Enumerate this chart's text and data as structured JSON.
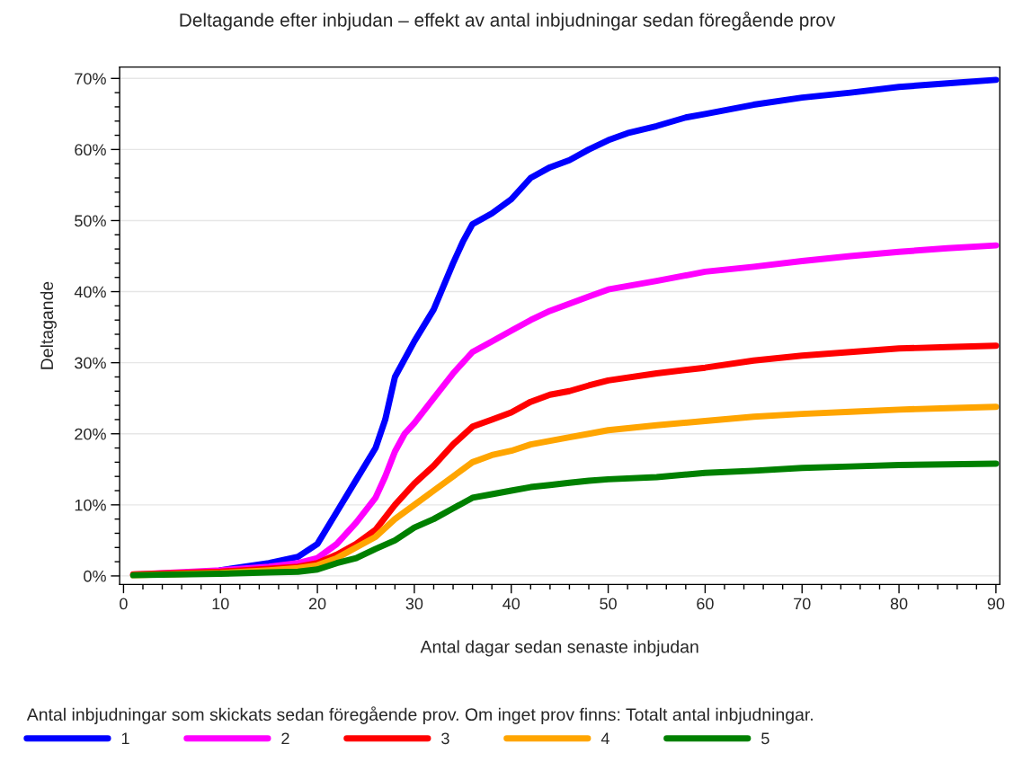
{
  "chart_data": {
    "type": "line",
    "title": "Deltagande efter inbjudan – effekt av antal inbjudningar sedan föregående prov",
    "xlabel": "Antal dagar sedan senaste inbjudan",
    "ylabel": "Deltagande",
    "legend_title": "Antal inbjudningar som skickats sedan föregående prov. Om inget prov finns: Totalt antal inbjudningar.",
    "x": [
      1,
      10,
      15,
      18,
      20,
      22,
      24,
      26,
      28,
      30,
      32,
      34,
      36,
      38,
      40,
      42,
      44,
      46,
      48,
      50,
      55,
      60,
      65,
      70,
      75,
      80,
      85,
      90
    ],
    "series": [
      {
        "name": "1",
        "color": "#0000ff",
        "x": [
          10,
          15,
          18,
          20,
          22,
          24,
          26,
          27,
          28,
          30,
          32,
          34,
          35,
          36,
          38,
          40,
          42,
          44,
          46,
          48,
          50,
          52,
          55,
          58,
          60,
          65,
          70,
          75,
          80,
          85,
          90
        ],
        "values": [
          0.8,
          1.8,
          2.7,
          4.5,
          9,
          13.5,
          18,
          22,
          28,
          33,
          37.5,
          44,
          47,
          49.5,
          51,
          53,
          56,
          57.5,
          58.5,
          60,
          61.3,
          62.3,
          63.3,
          64.5,
          65,
          66.3,
          67.3,
          68,
          68.8,
          69.3,
          69.8
        ]
      },
      {
        "name": "2",
        "color": "#ff00ff",
        "x": [
          1,
          10,
          15,
          18,
          20,
          22,
          24,
          26,
          27,
          28,
          29,
          30,
          32,
          34,
          36,
          38,
          40,
          42,
          44,
          46,
          48,
          50,
          55,
          60,
          65,
          70,
          75,
          80,
          85,
          90
        ],
        "values": [
          0.2,
          0.8,
          1.3,
          1.8,
          2.5,
          4.5,
          7.5,
          11,
          14,
          17.5,
          20,
          21.5,
          25,
          28.5,
          31.5,
          33,
          34.5,
          36,
          37.3,
          38.3,
          39.3,
          40.3,
          41.5,
          42.8,
          43.5,
          44.3,
          45,
          45.6,
          46.1,
          46.5
        ]
      },
      {
        "name": "3",
        "color": "#ff0000",
        "values": [
          0.2,
          0.6,
          1.0,
          1.3,
          1.8,
          3,
          4.5,
          6.5,
          10,
          13,
          15.5,
          18.5,
          21,
          22,
          23,
          24.5,
          25.5,
          26,
          26.8,
          27.5,
          28.5,
          29.3,
          30.3,
          31,
          31.5,
          32,
          32.2,
          32.4
        ]
      },
      {
        "name": "4",
        "color": "#ffa500",
        "values": [
          0.1,
          0.4,
          0.8,
          1.1,
          1.5,
          2.5,
          4,
          5.5,
          8,
          10,
          12,
          14,
          16,
          17,
          17.6,
          18.5,
          19,
          19.5,
          20,
          20.5,
          21.2,
          21.8,
          22.4,
          22.8,
          23.1,
          23.4,
          23.6,
          23.8
        ]
      },
      {
        "name": "5",
        "color": "#008000",
        "values": [
          0.1,
          0.3,
          0.5,
          0.6,
          0.9,
          1.8,
          2.5,
          3.8,
          5,
          6.8,
          8,
          9.5,
          11,
          11.5,
          12,
          12.5,
          12.8,
          13.1,
          13.4,
          13.6,
          13.9,
          14.5,
          14.8,
          15.2,
          15.4,
          15.6,
          15.7,
          15.8
        ]
      }
    ],
    "xlim": [
      -0.4,
      90.4
    ],
    "xticks": [
      0,
      10,
      20,
      30,
      40,
      50,
      60,
      70,
      80,
      90
    ],
    "ylim": [
      -1.2,
      71.6
    ],
    "yticks": [
      {
        "value": 0,
        "label": "0%"
      },
      {
        "value": 10,
        "label": "10%"
      },
      {
        "value": 20,
        "label": "20%"
      },
      {
        "value": 30,
        "label": "30%"
      },
      {
        "value": 40,
        "label": "40%"
      },
      {
        "value": 50,
        "label": "50%"
      },
      {
        "value": 60,
        "label": "60%"
      },
      {
        "value": 70,
        "label": "70%"
      }
    ],
    "grid": "y",
    "legend": "bottom",
    "line_style": "solid",
    "marker": "none"
  }
}
